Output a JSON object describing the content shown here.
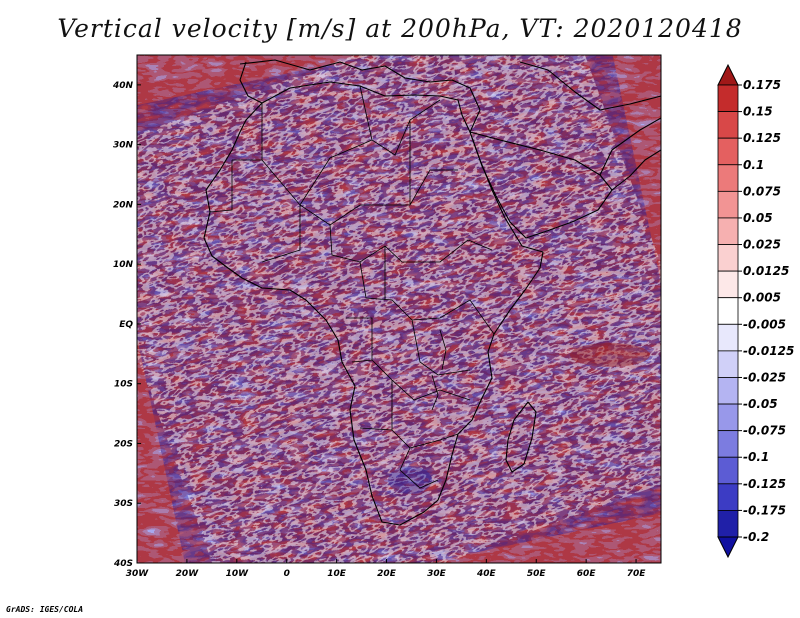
{
  "title": "Vertical velocity [m/s] at 200hPa, VT: 2020120418",
  "credit": "GrADS: IGES/COLA",
  "map": {
    "lon_labels": [
      "30W",
      "20W",
      "10W",
      "0",
      "10E",
      "20E",
      "30E",
      "40E",
      "50E",
      "60E",
      "70E"
    ],
    "lat_labels": [
      "40N",
      "30N",
      "20N",
      "10N",
      "EQ",
      "10S",
      "20S",
      "30S",
      "40S"
    ],
    "lon_range": [
      -30,
      75
    ],
    "lat_range": [
      -40,
      45
    ]
  },
  "colorbar": {
    "levels": [
      "0.175",
      "0.15",
      "0.125",
      "0.1",
      "0.075",
      "0.05",
      "0.025",
      "0.0125",
      "0.005",
      "-0.005",
      "-0.0125",
      "-0.025",
      "-0.05",
      "-0.075",
      "-0.1",
      "-0.125",
      "-0.175",
      "-0.2"
    ],
    "colors": [
      "#a01818",
      "#c42c2c",
      "#d84848",
      "#e46060",
      "#ec7a7a",
      "#f29494",
      "#f6b0b0",
      "#fad0d0",
      "#fde8e8",
      "#ffffff",
      "#e8e8fc",
      "#d0d0f8",
      "#b4b4f2",
      "#9898ea",
      "#7c7ce0",
      "#5c5cd4",
      "#3c3cc4",
      "#2020a8",
      "#1010a0"
    ]
  }
}
